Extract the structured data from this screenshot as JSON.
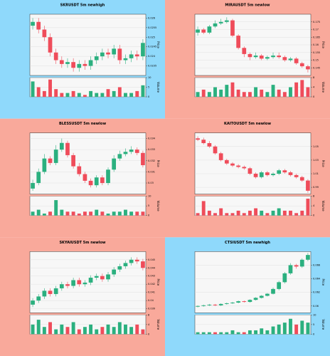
{
  "chart_data": [
    {
      "type": "candlestick",
      "title": "SKRUSDT 5m newhigh",
      "background": "#8fd9fb",
      "up_color": "#2bb07f",
      "down_color": "#ef4c5a",
      "grid": true,
      "y_label": "Price",
      "volume_label": "Volume",
      "open": [
        0.0256,
        0.0258,
        0.0254,
        0.025,
        0.0242,
        0.0238,
        0.0236,
        0.0237,
        0.0234,
        0.0236,
        0.0235,
        0.0238,
        0.024,
        0.0242,
        0.0241,
        0.0244,
        0.0238,
        0.0239,
        0.0241,
        0.024
      ],
      "high": [
        0.026,
        0.026,
        0.0256,
        0.0252,
        0.0244,
        0.024,
        0.0239,
        0.0239,
        0.0238,
        0.0238,
        0.024,
        0.0242,
        0.0244,
        0.0244,
        0.0246,
        0.0246,
        0.0241,
        0.0243,
        0.0243,
        0.0249
      ],
      "low": [
        0.0254,
        0.0252,
        0.0248,
        0.024,
        0.0236,
        0.0234,
        0.0234,
        0.0232,
        0.0232,
        0.0233,
        0.0233,
        0.0236,
        0.0238,
        0.0239,
        0.0239,
        0.0236,
        0.0236,
        0.0237,
        0.0238,
        0.0238
      ],
      "close": [
        0.0258,
        0.0254,
        0.025,
        0.0242,
        0.0238,
        0.0236,
        0.0237,
        0.0234,
        0.0236,
        0.0235,
        0.0238,
        0.024,
        0.0242,
        0.0241,
        0.0244,
        0.0238,
        0.0239,
        0.0241,
        0.024,
        0.0247
      ],
      "volume": [
        8,
        5,
        3,
        9,
        4,
        2,
        2,
        3,
        2,
        1,
        3,
        2,
        2,
        4,
        3,
        5,
        2,
        2,
        3,
        6
      ],
      "ylim": [
        0.023,
        0.0262
      ],
      "yticks": [
        0.0235,
        0.024,
        0.0245,
        0.025,
        0.0255,
        0.026
      ],
      "volume_ylim": [
        0,
        10
      ],
      "volume_yticks": [
        0,
        5,
        10
      ]
    },
    {
      "type": "candlestick",
      "title": "MIRAUSDT 5m newlow",
      "background": "#f9a99b",
      "up_color": "#2bb07f",
      "down_color": "#ef4c5a",
      "grid": true,
      "y_label": "Price",
      "volume_label": "Volume",
      "open": [
        0.168,
        0.17,
        0.168,
        0.172,
        0.174,
        0.175,
        0.176,
        0.166,
        0.158,
        0.154,
        0.152,
        0.153,
        0.151,
        0.152,
        0.153,
        0.152,
        0.15,
        0.151,
        0.148,
        0.146
      ],
      "high": [
        0.172,
        0.171,
        0.173,
        0.176,
        0.177,
        0.178,
        0.177,
        0.167,
        0.159,
        0.155,
        0.155,
        0.154,
        0.153,
        0.155,
        0.155,
        0.153,
        0.152,
        0.152,
        0.149,
        0.147
      ],
      "low": [
        0.166,
        0.167,
        0.167,
        0.171,
        0.173,
        0.174,
        0.165,
        0.157,
        0.152,
        0.15,
        0.151,
        0.15,
        0.15,
        0.151,
        0.151,
        0.149,
        0.149,
        0.147,
        0.145,
        0.142
      ],
      "close": [
        0.17,
        0.168,
        0.172,
        0.174,
        0.175,
        0.176,
        0.166,
        0.158,
        0.154,
        0.152,
        0.153,
        0.151,
        0.152,
        0.153,
        0.152,
        0.15,
        0.151,
        0.148,
        0.146,
        0.144
      ],
      "volume": [
        2,
        3,
        2,
        4,
        3,
        5,
        6,
        3,
        2,
        2,
        4,
        3,
        2,
        5,
        3,
        2,
        4,
        6,
        7,
        4
      ],
      "ylim": [
        0.14,
        0.18
      ],
      "yticks": [
        0.145,
        0.15,
        0.155,
        0.16,
        0.165,
        0.17,
        0.175
      ],
      "volume_ylim": [
        0,
        8
      ],
      "volume_yticks": [
        0,
        4,
        8
      ]
    },
    {
      "type": "candlestick",
      "title": "BLESSUSDT 5m newlow",
      "background": "#f9a99b",
      "up_color": "#2bb07f",
      "down_color": "#ef4c5a",
      "grid": true,
      "y_label": "Price",
      "volume_label": "Volume",
      "open": [
        0.0295,
        0.03,
        0.031,
        0.0322,
        0.0318,
        0.033,
        0.0336,
        0.0325,
        0.0315,
        0.0308,
        0.0302,
        0.0298,
        0.0305,
        0.03,
        0.0312,
        0.0322,
        0.0326,
        0.0328,
        0.033,
        0.0327
      ],
      "high": [
        0.0303,
        0.0313,
        0.0326,
        0.0324,
        0.0334,
        0.034,
        0.0338,
        0.0327,
        0.0318,
        0.031,
        0.0304,
        0.0307,
        0.0307,
        0.0314,
        0.0325,
        0.0329,
        0.0331,
        0.0333,
        0.0332,
        0.0329
      ],
      "low": [
        0.0293,
        0.0298,
        0.0308,
        0.0316,
        0.0316,
        0.0328,
        0.0323,
        0.0313,
        0.0306,
        0.03,
        0.0296,
        0.0296,
        0.0298,
        0.0298,
        0.031,
        0.032,
        0.0324,
        0.0326,
        0.0325,
        0.0314
      ],
      "close": [
        0.03,
        0.031,
        0.0322,
        0.0318,
        0.033,
        0.0336,
        0.0325,
        0.0315,
        0.0308,
        0.0302,
        0.0298,
        0.0305,
        0.03,
        0.0312,
        0.0322,
        0.0326,
        0.0328,
        0.033,
        0.0327,
        0.0316
      ],
      "volume": [
        2,
        3,
        1,
        2,
        8,
        3,
        2,
        2,
        1,
        2,
        2,
        3,
        2,
        1,
        2,
        2,
        3,
        2,
        2,
        2
      ],
      "ylim": [
        0.029,
        0.0345
      ],
      "yticks": [
        0.03,
        0.031,
        0.032,
        0.033,
        0.034
      ],
      "volume_ylim": [
        0,
        10
      ],
      "volume_yticks": [
        0,
        5,
        10
      ]
    },
    {
      "type": "candlestick",
      "title": "KAITOUSDT 5m newlow",
      "background": "#f9a99b",
      "up_color": "#2bb07f",
      "down_color": "#ef4c5a",
      "grid": true,
      "y_label": "Price",
      "volume_label": "Volume",
      "open": [
        1.062,
        1.06,
        1.055,
        1.05,
        1.04,
        1.03,
        1.025,
        1.022,
        1.02,
        1.018,
        1.01,
        1.005,
        1.012,
        1.008,
        1.01,
        1.015,
        1.012,
        1.008,
        1.005,
        1.0
      ],
      "high": [
        1.065,
        1.063,
        1.058,
        1.052,
        1.042,
        1.032,
        1.027,
        1.024,
        1.022,
        1.02,
        1.012,
        1.014,
        1.014,
        1.012,
        1.017,
        1.017,
        1.014,
        1.01,
        1.007,
        1.002
      ],
      "low": [
        1.058,
        1.053,
        1.048,
        1.038,
        1.028,
        1.023,
        1.02,
        1.018,
        1.016,
        1.008,
        1.003,
        1.003,
        1.006,
        1.006,
        1.008,
        1.01,
        1.006,
        1.003,
        0.998,
        0.982
      ],
      "close": [
        1.06,
        1.055,
        1.05,
        1.04,
        1.03,
        1.025,
        1.022,
        1.02,
        1.018,
        1.01,
        1.005,
        1.012,
        1.008,
        1.01,
        1.015,
        1.012,
        1.008,
        1.005,
        1.0,
        0.985
      ],
      "volume": [
        1,
        6,
        2,
        1,
        3,
        1,
        1,
        2,
        1,
        2,
        3,
        2,
        1,
        2,
        3,
        2,
        2,
        1,
        2,
        7
      ],
      "ylim": [
        0.98,
        1.07
      ],
      "yticks": [
        0.99,
        1.01,
        1.03,
        1.05
      ],
      "volume_ylim": [
        0,
        8
      ],
      "volume_yticks": [
        0,
        4,
        8
      ]
    },
    {
      "type": "candlestick",
      "title": "SKYAIUSDT 5m newlow",
      "background": "#f9a99b",
      "up_color": "#2bb07f",
      "down_color": "#ef4c5a",
      "grid": true,
      "y_label": "Price",
      "volume_label": "Volume",
      "open": [
        0.0395,
        0.04,
        0.0405,
        0.0412,
        0.0408,
        0.0415,
        0.042,
        0.0418,
        0.0425,
        0.042,
        0.0422,
        0.0428,
        0.043,
        0.0426,
        0.0432,
        0.0438,
        0.0442,
        0.0446,
        0.045,
        0.0448
      ],
      "high": [
        0.0403,
        0.0408,
        0.0415,
        0.0415,
        0.0418,
        0.0423,
        0.0423,
        0.0428,
        0.0428,
        0.0425,
        0.0431,
        0.0433,
        0.0433,
        0.0435,
        0.0441,
        0.0445,
        0.0449,
        0.0453,
        0.0453,
        0.0451
      ],
      "low": [
        0.0392,
        0.0397,
        0.0402,
        0.0405,
        0.0405,
        0.0412,
        0.0415,
        0.0415,
        0.0417,
        0.0417,
        0.0419,
        0.0425,
        0.0423,
        0.0423,
        0.0429,
        0.0435,
        0.0439,
        0.0443,
        0.0445,
        0.0437
      ],
      "close": [
        0.04,
        0.0405,
        0.0412,
        0.0408,
        0.0415,
        0.042,
        0.0418,
        0.0425,
        0.042,
        0.0422,
        0.0428,
        0.043,
        0.0426,
        0.0432,
        0.0438,
        0.0442,
        0.0446,
        0.045,
        0.0448,
        0.044
      ],
      "volume": [
        4,
        6,
        3,
        5,
        2,
        4,
        3,
        5,
        2,
        3,
        4,
        2,
        3,
        4,
        3,
        5,
        4,
        3,
        4,
        2
      ],
      "ylim": [
        0.0385,
        0.046
      ],
      "yticks": [
        0.039,
        0.04,
        0.041,
        0.042,
        0.043,
        0.044,
        0.045
      ],
      "volume_ylim": [
        0,
        8
      ],
      "volume_yticks": [
        0,
        4,
        8
      ]
    },
    {
      "type": "candlestick",
      "title": "CTSIUSDT 5m newhigh",
      "background": "#8fd9fb",
      "up_color": "#2bb07f",
      "down_color": "#ef4c5a",
      "grid": true,
      "y_label": "Price",
      "volume_label": "Volume",
      "open": [
        0.0599,
        0.06,
        0.0601,
        0.0602,
        0.0601,
        0.0603,
        0.0604,
        0.0605,
        0.0607,
        0.0606,
        0.0609,
        0.0612,
        0.0615,
        0.0618,
        0.0625,
        0.0635,
        0.0648,
        0.066,
        0.0658,
        0.0668
      ],
      "high": [
        0.0601,
        0.0602,
        0.0603,
        0.0603,
        0.0604,
        0.0605,
        0.0606,
        0.0608,
        0.0608,
        0.061,
        0.0613,
        0.0616,
        0.0619,
        0.0627,
        0.0637,
        0.065,
        0.0663,
        0.0662,
        0.067,
        0.0678
      ],
      "low": [
        0.0598,
        0.0599,
        0.06,
        0.06,
        0.06,
        0.0602,
        0.0603,
        0.0604,
        0.0605,
        0.0605,
        0.0608,
        0.0611,
        0.0614,
        0.0617,
        0.0623,
        0.0633,
        0.0646,
        0.0655,
        0.0656,
        0.0666
      ],
      "close": [
        0.06,
        0.0601,
        0.0602,
        0.0601,
        0.0603,
        0.0604,
        0.0605,
        0.0607,
        0.0606,
        0.0609,
        0.0612,
        0.0615,
        0.0618,
        0.0625,
        0.0635,
        0.0648,
        0.066,
        0.0658,
        0.0668,
        0.0675
      ],
      "volume": [
        1,
        1,
        1,
        1,
        1,
        1,
        2,
        1,
        1,
        2,
        2,
        3,
        2,
        4,
        5,
        6,
        8,
        5,
        7,
        6
      ],
      "ylim": [
        0.059,
        0.068
      ],
      "yticks": [
        0.06,
        0.062,
        0.064,
        0.066
      ],
      "volume_ylim": [
        0,
        10
      ],
      "volume_yticks": [
        0,
        5,
        10
      ]
    }
  ]
}
